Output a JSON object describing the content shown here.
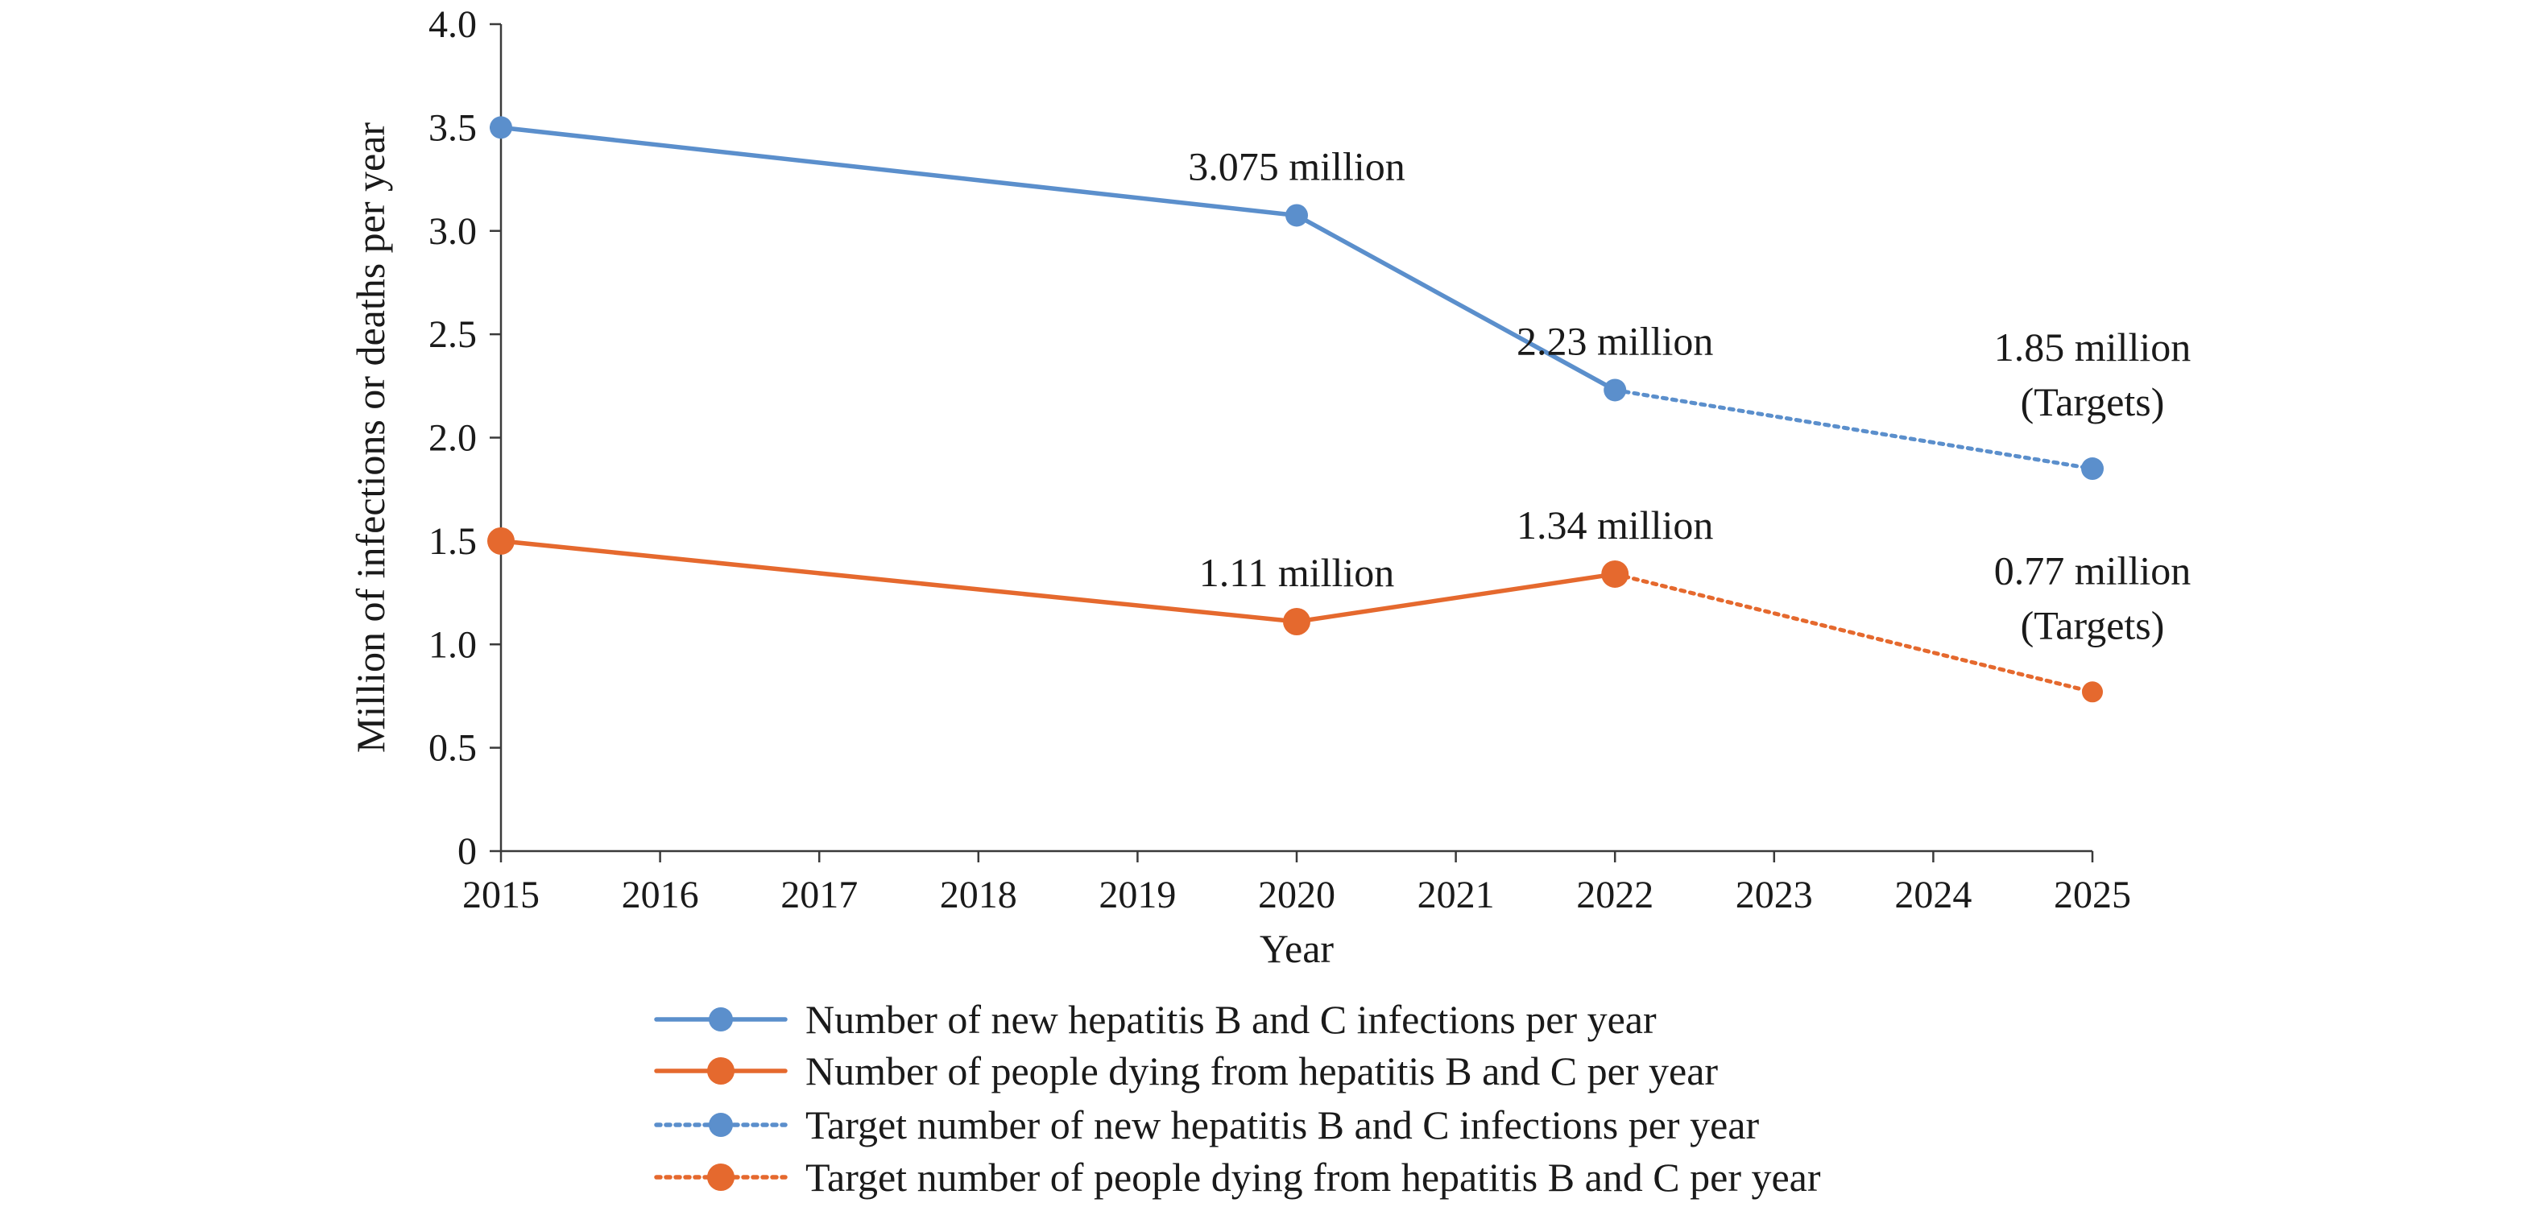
{
  "chart_data": {
    "type": "line",
    "xlabel": "Year",
    "ylabel": "Million of infections or deaths per year",
    "x_ticks": [
      "2015",
      "2016",
      "2017",
      "2018",
      "2019",
      "2020",
      "2021",
      "2022",
      "2023",
      "2024",
      "2025"
    ],
    "y_ticks": [
      "0",
      "0.5",
      "1.0",
      "1.5",
      "2.0",
      "2.5",
      "3.0",
      "3.5",
      "4.0"
    ],
    "xlim": [
      2015,
      2025
    ],
    "ylim": [
      0,
      4.0
    ],
    "grid": false,
    "legend_position": "bottom",
    "series": [
      {
        "name": "Number of new hepatitis B and C infections per year",
        "color": "#5B8FCC",
        "line_style": "solid",
        "points": [
          {
            "x": 2015,
            "y": 3.5
          },
          {
            "x": 2020,
            "y": 3.075
          },
          {
            "x": 2022,
            "y": 2.23
          }
        ]
      },
      {
        "name": "Number of people dying from hepatitis B and C per year",
        "color": "#E5692E",
        "line_style": "solid",
        "points": [
          {
            "x": 2015,
            "y": 1.5
          },
          {
            "x": 2020,
            "y": 1.11
          },
          {
            "x": 2022,
            "y": 1.34
          }
        ]
      },
      {
        "name": "Target number of new hepatitis B and C infections per year",
        "color": "#5B8FCC",
        "line_style": "dotted",
        "points": [
          {
            "x": 2022,
            "y": 2.23
          },
          {
            "x": 2025,
            "y": 1.85
          }
        ]
      },
      {
        "name": "Target number of people dying from hepatitis B and C per year",
        "color": "#E5692E",
        "line_style": "dotted",
        "points": [
          {
            "x": 2022,
            "y": 1.34
          },
          {
            "x": 2025,
            "y": 0.77
          }
        ]
      }
    ],
    "annotations": [
      {
        "x": 2020,
        "y": 3.075,
        "lines": [
          "3.075 million"
        ]
      },
      {
        "x": 2022,
        "y": 2.23,
        "lines": [
          "2.23 million"
        ]
      },
      {
        "x": 2025,
        "y": 1.85,
        "lines": [
          "1.85 million",
          "(Targets)"
        ]
      },
      {
        "x": 2020,
        "y": 1.11,
        "lines": [
          "1.11 million"
        ]
      },
      {
        "x": 2022,
        "y": 1.34,
        "lines": [
          "1.34 million"
        ]
      },
      {
        "x": 2025,
        "y": 0.77,
        "lines": [
          "0.77 million",
          "(Targets)"
        ]
      }
    ]
  }
}
